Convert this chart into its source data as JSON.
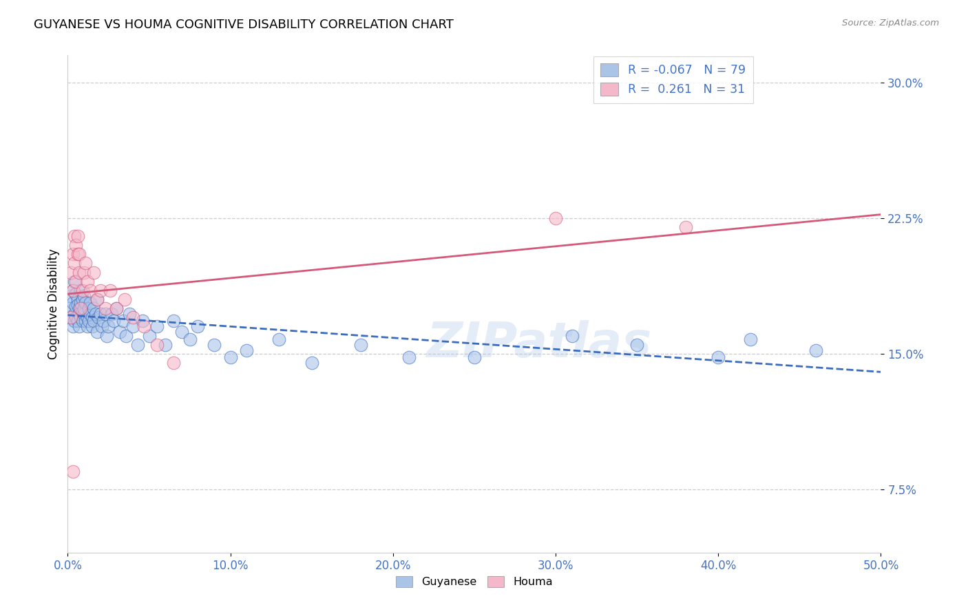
{
  "title": "GUYANESE VS HOUMA COGNITIVE DISABILITY CORRELATION CHART",
  "source": "Source: ZipAtlas.com",
  "ylabel": "Cognitive Disability",
  "legend_label1": "Guyanese",
  "legend_label2": "Houma",
  "R1": -0.067,
  "N1": 79,
  "R2": 0.261,
  "N2": 31,
  "color_blue": "#aac4e8",
  "color_pink": "#f5b8cb",
  "line_blue": "#3a6bbf",
  "line_pink": "#d45878",
  "watermark": "ZIPatlas",
  "xlim": [
    0.0,
    0.5
  ],
  "ylim": [
    0.04,
    0.315
  ],
  "xtick_vals": [
    0.0,
    0.1,
    0.2,
    0.3,
    0.4,
    0.5
  ],
  "xtick_labels": [
    "0.0%",
    "10.0%",
    "20.0%",
    "30.0%",
    "40.0%",
    "50.0%"
  ],
  "ytick_vals": [
    0.075,
    0.15,
    0.225,
    0.3
  ],
  "ytick_labels": [
    "7.5%",
    "15.0%",
    "22.5%",
    "30.0%"
  ],
  "blue_x": [
    0.001,
    0.002,
    0.002,
    0.003,
    0.003,
    0.003,
    0.004,
    0.004,
    0.004,
    0.005,
    0.005,
    0.005,
    0.006,
    0.006,
    0.006,
    0.007,
    0.007,
    0.007,
    0.008,
    0.008,
    0.008,
    0.009,
    0.009,
    0.009,
    0.01,
    0.01,
    0.01,
    0.011,
    0.011,
    0.012,
    0.012,
    0.013,
    0.013,
    0.014,
    0.014,
    0.015,
    0.015,
    0.016,
    0.016,
    0.017,
    0.018,
    0.018,
    0.019,
    0.02,
    0.021,
    0.022,
    0.023,
    0.024,
    0.025,
    0.027,
    0.028,
    0.03,
    0.032,
    0.034,
    0.036,
    0.038,
    0.04,
    0.043,
    0.046,
    0.05,
    0.055,
    0.06,
    0.065,
    0.07,
    0.075,
    0.08,
    0.09,
    0.1,
    0.11,
    0.13,
    0.15,
    0.18,
    0.21,
    0.25,
    0.31,
    0.35,
    0.4,
    0.42,
    0.46
  ],
  "blue_y": [
    0.175,
    0.182,
    0.17,
    0.165,
    0.178,
    0.185,
    0.172,
    0.168,
    0.19,
    0.176,
    0.183,
    0.17,
    0.168,
    0.18,
    0.177,
    0.175,
    0.172,
    0.165,
    0.185,
    0.178,
    0.17,
    0.173,
    0.18,
    0.168,
    0.182,
    0.172,
    0.175,
    0.168,
    0.178,
    0.17,
    0.165,
    0.175,
    0.168,
    0.172,
    0.178,
    0.17,
    0.165,
    0.175,
    0.168,
    0.172,
    0.18,
    0.162,
    0.17,
    0.172,
    0.165,
    0.168,
    0.172,
    0.16,
    0.165,
    0.172,
    0.168,
    0.175,
    0.162,
    0.168,
    0.16,
    0.172,
    0.165,
    0.155,
    0.168,
    0.16,
    0.165,
    0.155,
    0.168,
    0.162,
    0.158,
    0.165,
    0.155,
    0.148,
    0.152,
    0.158,
    0.145,
    0.155,
    0.148,
    0.148,
    0.16,
    0.155,
    0.148,
    0.158,
    0.152
  ],
  "pink_x": [
    0.002,
    0.002,
    0.003,
    0.003,
    0.004,
    0.004,
    0.005,
    0.005,
    0.006,
    0.006,
    0.007,
    0.007,
    0.008,
    0.009,
    0.01,
    0.011,
    0.012,
    0.014,
    0.016,
    0.018,
    0.02,
    0.023,
    0.026,
    0.03,
    0.035,
    0.04,
    0.047,
    0.055,
    0.065,
    0.3,
    0.38
  ],
  "pink_y": [
    0.17,
    0.195,
    0.185,
    0.205,
    0.2,
    0.215,
    0.19,
    0.21,
    0.205,
    0.215,
    0.195,
    0.205,
    0.175,
    0.185,
    0.195,
    0.2,
    0.19,
    0.185,
    0.195,
    0.18,
    0.185,
    0.175,
    0.185,
    0.175,
    0.18,
    0.17,
    0.165,
    0.155,
    0.145,
    0.225,
    0.22
  ]
}
